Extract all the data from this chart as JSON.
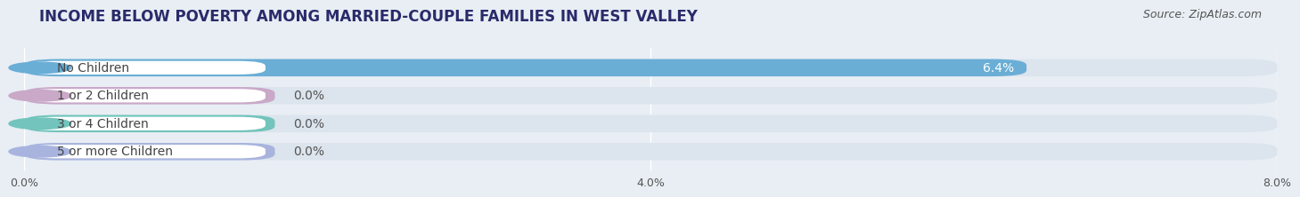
{
  "title": "INCOME BELOW POVERTY AMONG MARRIED-COUPLE FAMILIES IN WEST VALLEY",
  "source": "Source: ZipAtlas.com",
  "categories": [
    "No Children",
    "1 or 2 Children",
    "3 or 4 Children",
    "5 or more Children"
  ],
  "values": [
    6.4,
    0.0,
    0.0,
    0.0
  ],
  "bar_colors": [
    "#6aaed6",
    "#c9a8c8",
    "#72c4bc",
    "#a8b4de"
  ],
  "xlim": [
    0,
    8.0
  ],
  "xticks": [
    0.0,
    4.0,
    8.0
  ],
  "xtick_labels": [
    "0.0%",
    "4.0%",
    "8.0%"
  ],
  "background_color": "#e8eef4",
  "bar_background_color": "#dce4ed",
  "title_fontsize": 12,
  "source_fontsize": 9,
  "label_fontsize": 10,
  "value_fontsize": 10,
  "bar_height": 0.62,
  "zero_bar_width": 1.6
}
